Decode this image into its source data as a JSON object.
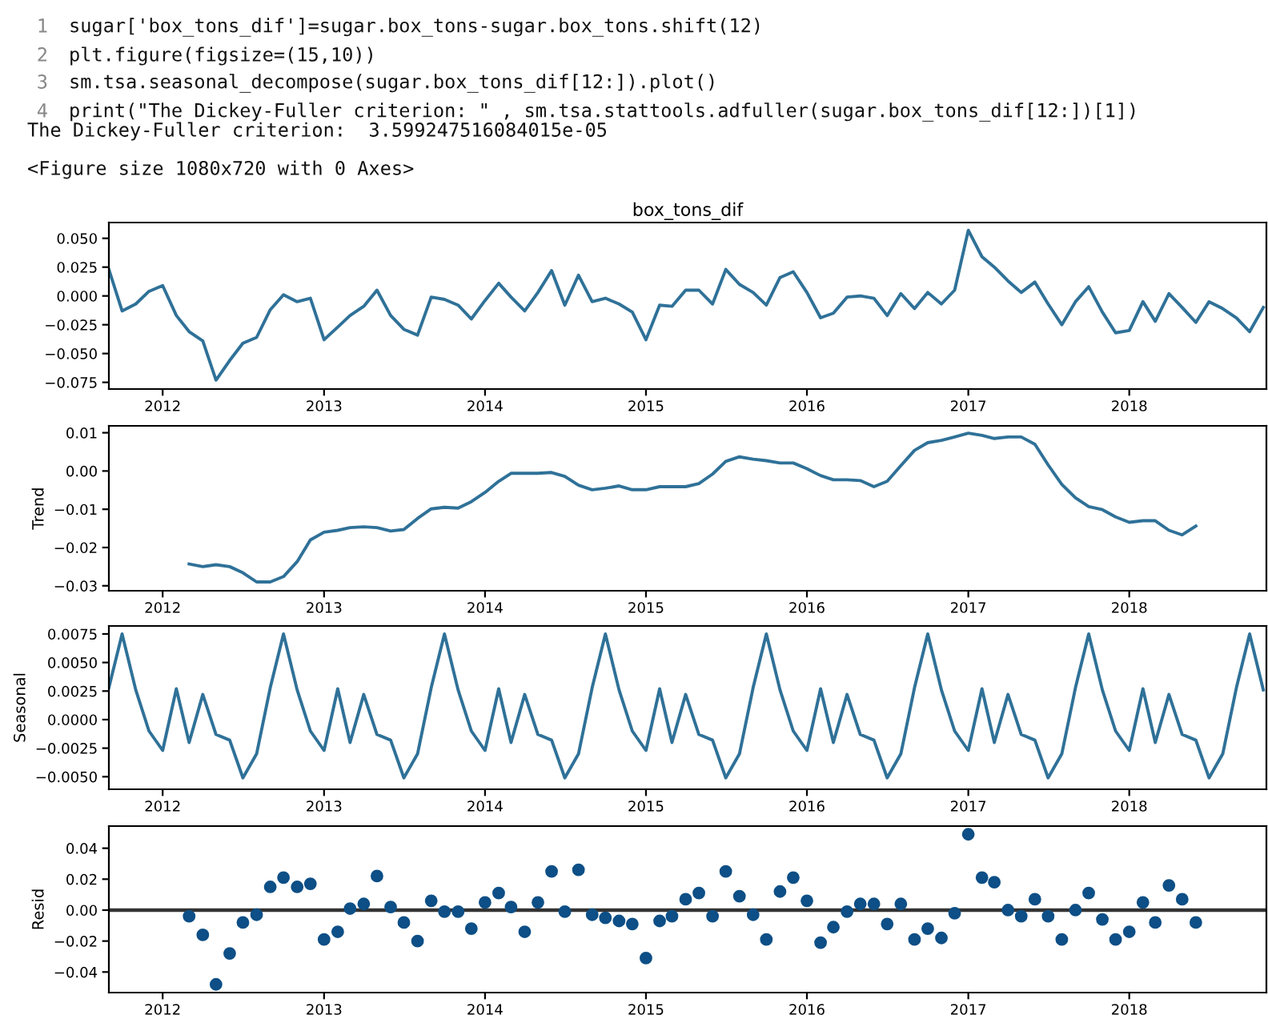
{
  "chart_data": [
    {
      "type": "line",
      "title": "box_tons_dif",
      "annotations": [
        "1",
        "sugar['box_tons_dif']=sugar.box_tons-sugar.box_tons.shift(12)",
        "2",
        "plt.figure(figsize=(15,10))",
        "3",
        "sm.tsa.seasonal_decompose(sugar.box_tons_dif[12:]).plot()",
        "4",
        "print(\"The Dickey-Fuller criterion: \" , sm.tsa.stattools.adfuller(sugar.box_tons_dif[12:])[1])",
        "The Dickey-Fuller criterion:  3.599247516084015e-05",
        "<Figure size 1080x720 with 0 Axes>"
      ],
      "x": [
        "2011-09",
        "2011-10",
        "2011-11",
        "2011-12",
        "2012-01",
        "2012-02",
        "2012-03",
        "2012-04",
        "2012-05",
        "2012-06",
        "2012-07",
        "2012-08",
        "2012-09",
        "2012-10",
        "2012-11",
        "2012-12",
        "2013-01",
        "2013-02",
        "2013-03",
        "2013-04",
        "2013-05",
        "2013-06",
        "2013-07",
        "2013-08",
        "2013-09",
        "2013-10",
        "2013-11",
        "2013-12",
        "2014-01",
        "2014-02",
        "2014-03",
        "2014-04",
        "2014-05",
        "2014-06",
        "2014-07",
        "2014-08",
        "2014-09",
        "2014-10",
        "2014-11",
        "2014-12",
        "2015-01",
        "2015-02",
        "2015-03",
        "2015-04",
        "2015-05",
        "2015-06",
        "2015-07",
        "2015-08",
        "2015-09",
        "2015-10",
        "2015-11",
        "2015-12",
        "2016-01",
        "2016-02",
        "2016-03",
        "2016-04",
        "2016-05",
        "2016-06",
        "2016-07",
        "2016-08",
        "2016-09",
        "2016-10",
        "2016-11",
        "2016-12",
        "2017-01",
        "2017-02",
        "2017-03",
        "2017-04",
        "2017-05",
        "2017-06",
        "2017-07",
        "2017-08",
        "2017-09",
        "2017-10",
        "2017-11",
        "2017-12",
        "2018-01",
        "2018-02",
        "2018-03",
        "2018-04",
        "2018-05",
        "2018-06",
        "2018-07",
        "2018-08",
        "2018-09",
        "2018-10",
        "2018-11"
      ],
      "series": [
        {
          "color": "#2f7198",
          "values": [
            0.023,
            -0.013,
            -0.007,
            0.004,
            0.009,
            -0.017,
            -0.031,
            -0.039,
            -0.073,
            -0.056,
            -0.041,
            -0.036,
            -0.012,
            0.001,
            -0.005,
            -0.002,
            -0.038,
            -0.027,
            -0.017,
            -0.009,
            0.005,
            -0.017,
            -0.029,
            -0.034,
            -0.001,
            -0.003,
            -0.008,
            -0.02,
            -0.004,
            0.011,
            -0.001,
            -0.013,
            0.003,
            0.022,
            -0.008,
            0.018,
            -0.005,
            -0.002,
            -0.007,
            -0.014,
            -0.038,
            -0.008,
            -0.009,
            0.005,
            0.005,
            -0.007,
            0.023,
            0.01,
            0.003,
            -0.008,
            0.016,
            0.021,
            0.003,
            -0.019,
            -0.015,
            -0.001,
            0.0,
            -0.002,
            -0.017,
            0.002,
            -0.011,
            0.003,
            -0.007,
            0.005,
            0.057,
            0.034,
            0.025,
            0.013,
            0.003,
            0.012,
            -0.007,
            -0.025,
            -0.005,
            0.008,
            -0.014,
            -0.032,
            -0.03,
            -0.005,
            -0.022,
            0.002,
            -0.01,
            -0.023,
            -0.005,
            -0.011,
            -0.019,
            -0.031,
            -0.01
          ]
        }
      ],
      "xlim": [
        "2011-09-01",
        "2018-11-08"
      ],
      "xticks": [
        "2012",
        "2013",
        "2014",
        "2015",
        "2016",
        "2017",
        "2018"
      ],
      "ylim": [
        -0.0808,
        0.0637
      ],
      "yticks": [
        {
          "value": -0.075,
          "label": "−0.075"
        },
        {
          "value": -0.05,
          "label": "−0.050"
        },
        {
          "value": -0.025,
          "label": "−0.025"
        },
        {
          "value": 0,
          "label": "0.000"
        },
        {
          "value": 0.025,
          "label": "0.025"
        },
        {
          "value": 0.05,
          "label": "0.050"
        }
      ]
    },
    {
      "type": "line",
      "ylabel": "Trend",
      "x": [
        "2012-03",
        "2012-04",
        "2012-05",
        "2012-06",
        "2012-07",
        "2012-08",
        "2012-09",
        "2012-10",
        "2012-11",
        "2012-12",
        "2013-01",
        "2013-02",
        "2013-03",
        "2013-04",
        "2013-05",
        "2013-06",
        "2013-07",
        "2013-08",
        "2013-09",
        "2013-10",
        "2013-11",
        "2013-12",
        "2014-01",
        "2014-02",
        "2014-03",
        "2014-04",
        "2014-05",
        "2014-06",
        "2014-07",
        "2014-08",
        "2014-09",
        "2014-10",
        "2014-11",
        "2014-12",
        "2015-01",
        "2015-02",
        "2015-03",
        "2015-04",
        "2015-05",
        "2015-06",
        "2015-07",
        "2015-08",
        "2015-09",
        "2015-10",
        "2015-11",
        "2015-12",
        "2016-01",
        "2016-02",
        "2016-03",
        "2016-04",
        "2016-05",
        "2016-06",
        "2016-07",
        "2016-08",
        "2016-09",
        "2016-10",
        "2016-11",
        "2016-12",
        "2017-01",
        "2017-02",
        "2017-03",
        "2017-04",
        "2017-05",
        "2017-06",
        "2017-07",
        "2017-08",
        "2017-09",
        "2017-10",
        "2017-11",
        "2017-12",
        "2018-01",
        "2018-02",
        "2018-03",
        "2018-04",
        "2018-05",
        "2018-06"
      ],
      "series": [
        {
          "color": "#2f7198",
          "values": [
            -0.0243,
            -0.025,
            -0.0245,
            -0.025,
            -0.0266,
            -0.029,
            -0.029,
            -0.0276,
            -0.0237,
            -0.018,
            -0.016,
            -0.0155,
            -0.0148,
            -0.0146,
            -0.0148,
            -0.0157,
            -0.0153,
            -0.0124,
            -0.0099,
            -0.0095,
            -0.0097,
            -0.008,
            -0.0056,
            -0.0027,
            -0.0006,
            -0.0006,
            -0.0006,
            -0.0004,
            -0.0014,
            -0.0037,
            -0.0049,
            -0.0045,
            -0.0039,
            -0.0049,
            -0.0049,
            -0.0041,
            -0.0041,
            -0.0041,
            -0.0033,
            -0.0008,
            0.0025,
            0.0037,
            0.0031,
            0.0027,
            0.0021,
            0.0021,
            0.0006,
            -0.0012,
            -0.0023,
            -0.0023,
            -0.0025,
            -0.0041,
            -0.0027,
            0.0014,
            0.0054,
            0.0074,
            0.008,
            0.0089,
            0.0099,
            0.0093,
            0.0085,
            0.0089,
            0.0089,
            0.007,
            0.0016,
            -0.0035,
            -0.007,
            -0.0093,
            -0.0101,
            -0.012,
            -0.0134,
            -0.013,
            -0.013,
            -0.0155,
            -0.0167,
            -0.0144
          ]
        }
      ],
      "xlim": [
        "2011-09-01",
        "2018-11-08"
      ],
      "xticks": [
        "2012",
        "2013",
        "2014",
        "2015",
        "2016",
        "2017",
        "2018"
      ],
      "ylim": [
        -0.0313,
        0.0118
      ],
      "yticks": [
        {
          "value": -0.03,
          "label": "−0.03"
        },
        {
          "value": -0.02,
          "label": "−0.02"
        },
        {
          "value": -0.01,
          "label": "−0.01"
        },
        {
          "value": 0,
          "label": "0.00"
        },
        {
          "value": 0.01,
          "label": "0.01"
        }
      ]
    },
    {
      "type": "line",
      "ylabel": "Seasonal",
      "x": [
        "2011-09",
        "2011-10",
        "2011-11",
        "2011-12",
        "2012-01",
        "2012-02",
        "2012-03",
        "2012-04",
        "2012-05",
        "2012-06",
        "2012-07",
        "2012-08",
        "2012-09",
        "2012-10",
        "2012-11",
        "2012-12",
        "2013-01",
        "2013-02",
        "2013-03",
        "2013-04",
        "2013-05",
        "2013-06",
        "2013-07",
        "2013-08",
        "2013-09",
        "2013-10",
        "2013-11",
        "2013-12",
        "2014-01",
        "2014-02",
        "2014-03",
        "2014-04",
        "2014-05",
        "2014-06",
        "2014-07",
        "2014-08",
        "2014-09",
        "2014-10",
        "2014-11",
        "2014-12",
        "2015-01",
        "2015-02",
        "2015-03",
        "2015-04",
        "2015-05",
        "2015-06",
        "2015-07",
        "2015-08",
        "2015-09",
        "2015-10",
        "2015-11",
        "2015-12",
        "2016-01",
        "2016-02",
        "2016-03",
        "2016-04",
        "2016-05",
        "2016-06",
        "2016-07",
        "2016-08",
        "2016-09",
        "2016-10",
        "2016-11",
        "2016-12",
        "2017-01",
        "2017-02",
        "2017-03",
        "2017-04",
        "2017-05",
        "2017-06",
        "2017-07",
        "2017-08",
        "2017-09",
        "2017-10",
        "2017-11",
        "2017-12",
        "2018-01",
        "2018-02",
        "2018-03",
        "2018-04",
        "2018-05",
        "2018-06",
        "2018-07",
        "2018-08",
        "2018-09",
        "2018-10",
        "2018-11"
      ],
      "series": [
        {
          "color": "#2f7198",
          "values": [
            0.0028,
            0.0075,
            0.0026,
            -0.001,
            -0.0027,
            0.0027,
            -0.002,
            0.0022,
            -0.0013,
            -0.0018,
            -0.0051,
            -0.003,
            0.0028,
            0.0075,
            0.0026,
            -0.001,
            -0.0027,
            0.0027,
            -0.002,
            0.0022,
            -0.0013,
            -0.0018,
            -0.0051,
            -0.003,
            0.0028,
            0.0075,
            0.0026,
            -0.001,
            -0.0027,
            0.0027,
            -0.002,
            0.0022,
            -0.0013,
            -0.0018,
            -0.0051,
            -0.003,
            0.0028,
            0.0075,
            0.0026,
            -0.001,
            -0.0027,
            0.0027,
            -0.002,
            0.0022,
            -0.0013,
            -0.0018,
            -0.0051,
            -0.003,
            0.0028,
            0.0075,
            0.0026,
            -0.001,
            -0.0027,
            0.0027,
            -0.002,
            0.0022,
            -0.0013,
            -0.0018,
            -0.0051,
            -0.003,
            0.0028,
            0.0075,
            0.0026,
            -0.001,
            -0.0027,
            0.0027,
            -0.002,
            0.0022,
            -0.0013,
            -0.0018,
            -0.0051,
            -0.003,
            0.0028,
            0.0075,
            0.0026,
            -0.001,
            -0.0027,
            0.0027,
            -0.002,
            0.0022,
            -0.0013,
            -0.0018,
            -0.0051,
            -0.003,
            0.0028,
            0.0075,
            0.0026
          ]
        }
      ],
      "xlim": [
        "2011-09-01",
        "2018-11-08"
      ],
      "xticks": [
        "2012",
        "2013",
        "2014",
        "2015",
        "2016",
        "2017",
        "2018"
      ],
      "ylim": [
        -0.0061,
        0.0082
      ],
      "yticks": [
        {
          "value": -0.005,
          "label": "−0.0050"
        },
        {
          "value": -0.0025,
          "label": "−0.0025"
        },
        {
          "value": 0,
          "label": "0.0000"
        },
        {
          "value": 0.0025,
          "label": "0.0025"
        },
        {
          "value": 0.005,
          "label": "0.0050"
        },
        {
          "value": 0.0075,
          "label": "0.0075"
        }
      ]
    },
    {
      "type": "scatter",
      "ylabel": "Resid",
      "marker": "circle",
      "x": [
        "2012-03",
        "2012-04",
        "2012-05",
        "2012-06",
        "2012-07",
        "2012-08",
        "2012-09",
        "2012-10",
        "2012-11",
        "2012-12",
        "2013-01",
        "2013-02",
        "2013-03",
        "2013-04",
        "2013-05",
        "2013-06",
        "2013-07",
        "2013-08",
        "2013-09",
        "2013-10",
        "2013-11",
        "2013-12",
        "2014-01",
        "2014-02",
        "2014-03",
        "2014-04",
        "2014-05",
        "2014-06",
        "2014-07",
        "2014-08",
        "2014-09",
        "2014-10",
        "2014-11",
        "2014-12",
        "2015-01",
        "2015-02",
        "2015-03",
        "2015-04",
        "2015-05",
        "2015-06",
        "2015-07",
        "2015-08",
        "2015-09",
        "2015-10",
        "2015-11",
        "2015-12",
        "2016-01",
        "2016-02",
        "2016-03",
        "2016-04",
        "2016-05",
        "2016-06",
        "2016-07",
        "2016-08",
        "2016-09",
        "2016-10",
        "2016-11",
        "2016-12",
        "2017-01",
        "2017-02",
        "2017-03",
        "2017-04",
        "2017-05",
        "2017-06",
        "2017-07",
        "2017-08",
        "2017-09",
        "2017-10",
        "2017-11",
        "2017-12",
        "2018-01",
        "2018-02",
        "2018-03",
        "2018-04",
        "2018-05",
        "2018-06"
      ],
      "series": [
        {
          "color": "#0d4f86",
          "values": [
            -0.004,
            -0.016,
            -0.048,
            -0.028,
            -0.008,
            -0.003,
            0.015,
            0.021,
            0.015,
            0.017,
            -0.019,
            -0.014,
            0.001,
            0.004,
            0.022,
            0.002,
            -0.008,
            -0.02,
            0.006,
            -0.001,
            -0.001,
            -0.012,
            0.005,
            0.011,
            0.002,
            -0.014,
            0.005,
            0.025,
            -0.001,
            0.026,
            -0.003,
            -0.005,
            -0.007,
            -0.009,
            -0.031,
            -0.007,
            -0.004,
            0.007,
            0.011,
            -0.004,
            0.025,
            0.009,
            -0.003,
            -0.019,
            0.012,
            0.021,
            0.006,
            -0.021,
            -0.011,
            -0.001,
            0.004,
            0.004,
            -0.009,
            0.004,
            -0.019,
            -0.012,
            -0.018,
            -0.002,
            0.049,
            0.021,
            0.018,
            0.0,
            -0.004,
            0.007,
            -0.004,
            -0.019,
            0.0,
            0.011,
            -0.006,
            -0.019,
            -0.014,
            0.005,
            -0.008,
            0.016,
            0.007,
            -0.008
          ]
        }
      ],
      "ref_lines": [
        {
          "axis": "y",
          "value": 0,
          "color": "#333333"
        }
      ],
      "xlim": [
        "2011-09-01",
        "2018-11-08"
      ],
      "xticks": [
        "2012",
        "2013",
        "2014",
        "2015",
        "2016",
        "2017",
        "2018"
      ],
      "ylim": [
        -0.0533,
        0.0543
      ],
      "yticks": [
        {
          "value": -0.04,
          "label": "−0.04"
        },
        {
          "value": -0.02,
          "label": "−0.02"
        },
        {
          "value": 0,
          "label": "0.00"
        },
        {
          "value": 0.02,
          "label": "0.02"
        },
        {
          "value": 0.04,
          "label": "0.04"
        }
      ]
    }
  ]
}
